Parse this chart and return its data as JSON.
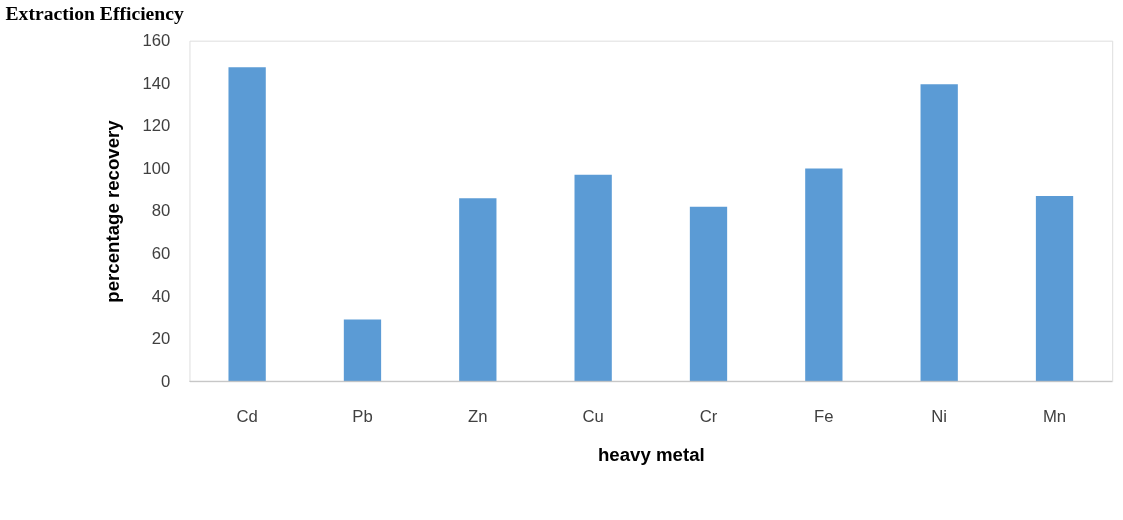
{
  "chart_data": {
    "type": "bar",
    "title": "Extraction Efficiency",
    "xlabel": "heavy metal",
    "ylabel": "percentage recovery",
    "categories": [
      "Cd",
      "Pb",
      "Zn",
      "Cu",
      "Cr",
      "Fe",
      "Ni",
      "Mn"
    ],
    "values": [
      147.5,
      29,
      86,
      97,
      82,
      100,
      139.5,
      87
    ],
    "color": "#5b9bd5",
    "ylim": [
      0,
      160
    ],
    "yticks": [
      0,
      20,
      40,
      60,
      80,
      100,
      120,
      140,
      160
    ],
    "grid": false
  }
}
